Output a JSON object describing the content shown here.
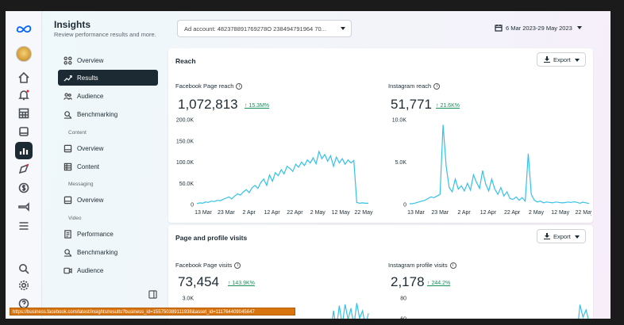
{
  "sidebar": {
    "title": "Insights",
    "subtitle": "Review performance results and more.",
    "items": [
      {
        "label": "Overview"
      },
      {
        "label": "Results"
      },
      {
        "label": "Audience"
      },
      {
        "label": "Benchmarking"
      }
    ],
    "content_section": {
      "label": "Content",
      "items": [
        {
          "label": "Overview"
        },
        {
          "label": "Content"
        }
      ]
    },
    "messaging_section": {
      "label": "Messaging",
      "items": [
        {
          "label": "Overview"
        }
      ]
    },
    "video_section": {
      "label": "Video",
      "items": [
        {
          "label": "Performance"
        },
        {
          "label": "Benchmarking"
        },
        {
          "label": "Audience"
        }
      ]
    }
  },
  "topbar": {
    "account": "Ad account: 482378891769278O 238494791964 70...",
    "date_range": "6 Mar 2023-29 May 2023"
  },
  "reach": {
    "title": "Reach",
    "export_label": "Export",
    "facebook": {
      "label": "Facebook Page reach",
      "value": "1,072,813",
      "change": "↑ 15.3M%"
    },
    "instagram": {
      "label": "Instagram reach",
      "value": "51,771",
      "change": "↑ 21.6K%"
    }
  },
  "visits": {
    "title": "Page and profile visits",
    "export_label": "Export",
    "facebook": {
      "label": "Facebook Page visits",
      "value": "73,454",
      "change": "↑ 143.9K%"
    },
    "instagram": {
      "label": "Instagram profile visits",
      "value": "2,178",
      "change": "↑ 244.2%"
    }
  },
  "status_url": "https://business.facebook.com/latest/insights/results?business_id=155750389111938&asset_id=111764409045647",
  "colors": {
    "line": "#34c1e8",
    "positive": "#1b8f5a",
    "active_nav": "#1c2b33"
  },
  "chart_data": [
    {
      "type": "line",
      "name_ref": "Facebook Page reach",
      "x_tick_labels": [
        "13 Mar",
        "23 Mar",
        "2 Apr",
        "12 Apr",
        "22 Apr",
        "2 May",
        "12 May",
        "22 May"
      ],
      "y_tick_labels": [
        "0",
        "50.0K",
        "100.0K",
        "150.0K",
        "200.0K"
      ],
      "ylim": [
        0,
        200000
      ],
      "values": [
        2000,
        4000,
        3000,
        6000,
        5000,
        8000,
        7000,
        10000,
        9000,
        12000,
        15000,
        18000,
        13000,
        20000,
        25000,
        22000,
        30000,
        35000,
        28000,
        40000,
        45000,
        38000,
        52000,
        60000,
        45000,
        70000,
        55000,
        75000,
        68000,
        82000,
        72000,
        90000,
        85000,
        78000,
        95000,
        88000,
        100000,
        92000,
        105000,
        98000,
        110000,
        96000,
        125000,
        108000,
        118000,
        102000,
        115000,
        90000,
        112000,
        98000,
        108000,
        95000,
        105000,
        98000,
        104000,
        5000,
        3000,
        4000,
        3000,
        3000
      ]
    },
    {
      "type": "line",
      "name_ref": "Instagram reach",
      "x_tick_labels": [
        "13 Mar",
        "23 Mar",
        "2 Apr",
        "12 Apr",
        "22 Apr",
        "2 May",
        "12 May",
        "22 May"
      ],
      "y_tick_labels": [
        "0",
        "5.0K",
        "10.0K"
      ],
      "ylim": [
        0,
        10000
      ],
      "values": [
        80,
        100,
        200,
        300,
        400,
        500,
        700,
        900,
        800,
        1000,
        1200,
        9400,
        4500,
        2000,
        1500,
        3000,
        1800,
        2200,
        1600,
        2500,
        1700,
        3500,
        2600,
        1900,
        4000,
        2400,
        1600,
        3000,
        1800,
        1200,
        2000,
        1000,
        1500,
        700,
        600,
        900,
        500,
        800,
        400,
        6000,
        1200,
        500,
        300,
        400,
        200,
        300,
        250,
        200,
        300,
        250,
        200,
        220,
        300,
        240,
        320,
        260,
        150,
        280,
        200,
        120
      ]
    },
    {
      "type": "line",
      "name_ref": "Facebook Page visits",
      "y_tick_labels": [
        "3.0K"
      ],
      "ylim": [
        0,
        3000
      ],
      "values": [
        0,
        0,
        0,
        0,
        0,
        0,
        0,
        0,
        0,
        0,
        0,
        0,
        0,
        0,
        0,
        0,
        0,
        0,
        0,
        0,
        0,
        0,
        0,
        0,
        0,
        0,
        0,
        0,
        0,
        0,
        0,
        0,
        0,
        0,
        0,
        0,
        0,
        0,
        0,
        0,
        0,
        0,
        0,
        0,
        0,
        0,
        0,
        2000,
        600,
        2400,
        900,
        2500,
        1300,
        2200,
        800,
        2600,
        1400,
        2000,
        700,
        1800
      ]
    },
    {
      "type": "line",
      "name_ref": "Instagram profile visits",
      "y_tick_labels": [
        "80",
        "60"
      ],
      "ylim": [
        0,
        80
      ],
      "values": [
        0,
        0,
        0,
        0,
        0,
        0,
        0,
        0,
        0,
        0,
        0,
        0,
        0,
        0,
        0,
        0,
        0,
        0,
        0,
        0,
        0,
        0,
        0,
        0,
        0,
        0,
        0,
        0,
        0,
        0,
        0,
        0,
        0,
        0,
        0,
        0,
        0,
        0,
        0,
        0,
        0,
        0,
        0,
        0,
        0,
        0,
        0,
        0,
        0,
        0,
        0,
        0,
        0,
        0,
        0,
        0,
        66,
        40,
        55,
        30
      ]
    }
  ]
}
